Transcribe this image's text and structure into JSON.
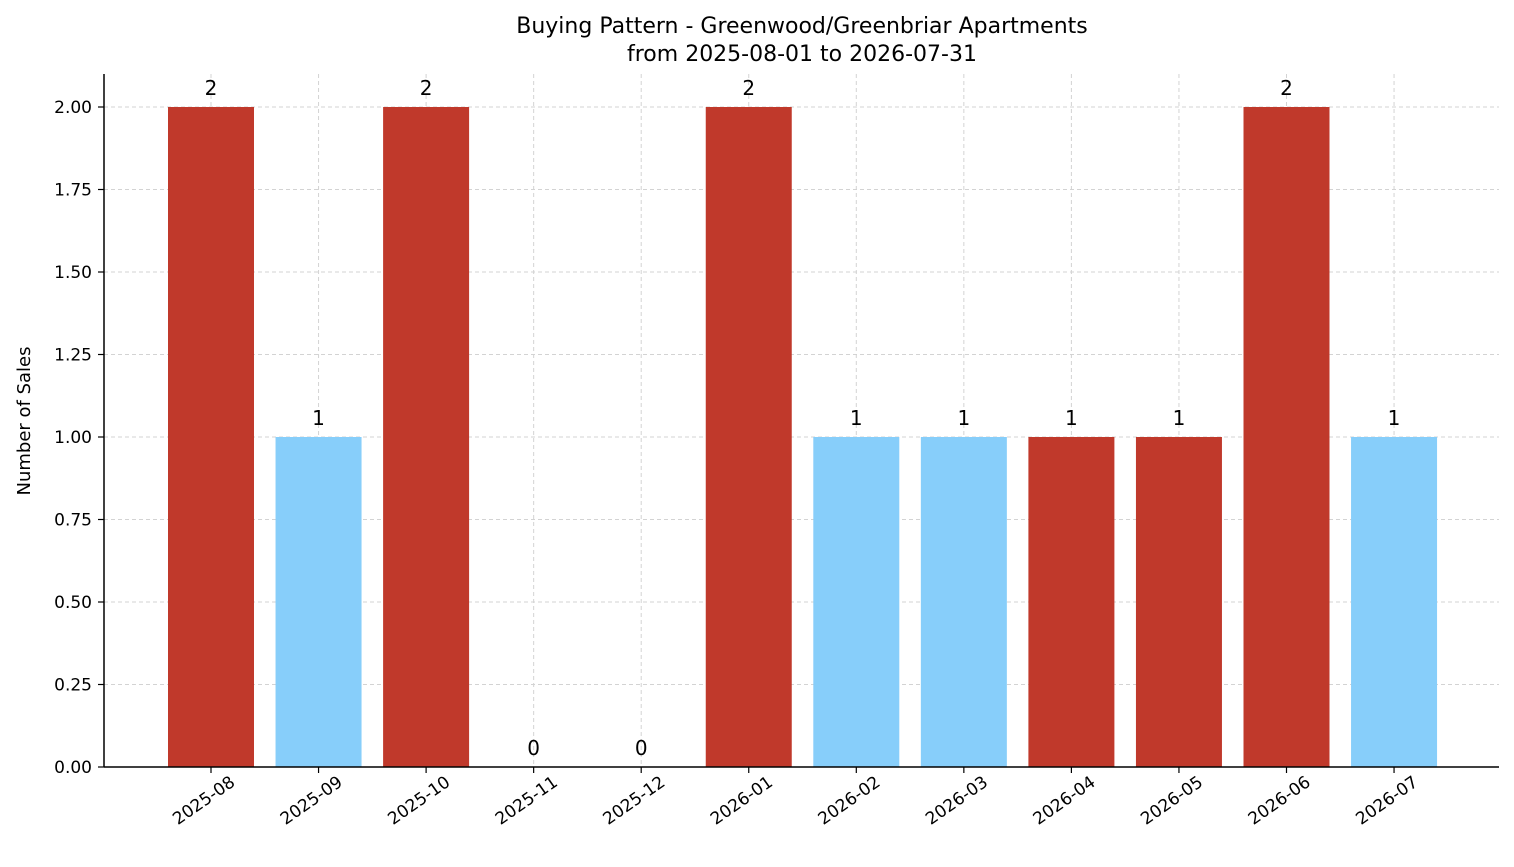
{
  "chart_data": {
    "type": "bar",
    "title": "Buying Pattern - Greenwood/Greenbriar Apartments",
    "subtitle": "from 2025-08-01 to 2026-07-31",
    "xlabel": "",
    "ylabel": "Number of Sales",
    "categories": [
      "2025-08",
      "2025-09",
      "2025-10",
      "2025-11",
      "2025-12",
      "2026-01",
      "2026-02",
      "2026-03",
      "2026-04",
      "2026-05",
      "2026-06",
      "2026-07"
    ],
    "values": [
      2,
      1,
      2,
      0,
      0,
      2,
      1,
      1,
      1,
      1,
      2,
      1
    ],
    "data_labels": [
      "2",
      "1",
      "2",
      "0",
      "0",
      "2",
      "1",
      "1",
      "1",
      "1",
      "2",
      "1"
    ],
    "bar_colors": [
      "#c0392b",
      "#87cefa",
      "#c0392b",
      "#c0392b",
      "#c0392b",
      "#c0392b",
      "#87cefa",
      "#87cefa",
      "#c0392b",
      "#c0392b",
      "#c0392b",
      "#87cefa"
    ],
    "ylim": [
      0,
      2.1
    ],
    "yticks": [
      0,
      0.25,
      0.5,
      0.75,
      1.0,
      1.25,
      1.5,
      1.75,
      2.0
    ],
    "ytick_labels": [
      "0.00",
      "0.25",
      "0.50",
      "0.75",
      "1.00",
      "1.25",
      "1.50",
      "1.75",
      "2.00"
    ],
    "grid": true,
    "legend": "none"
  }
}
